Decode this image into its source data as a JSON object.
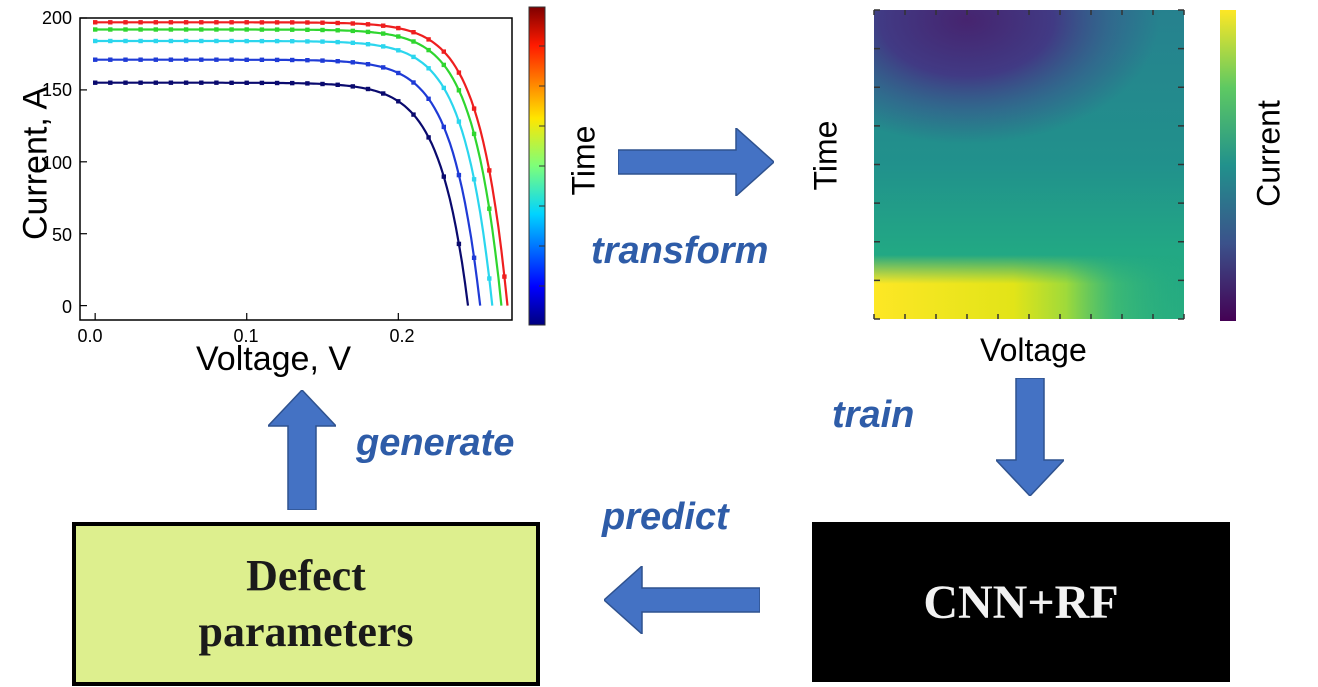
{
  "iv_plot": {
    "ylabel": "Current, A",
    "xlabel": "Voltage, V",
    "colorbar_label": "Time",
    "y_ticks": [
      "0",
      "50",
      "100",
      "150",
      "200"
    ],
    "x_ticks": [
      "0.0",
      "0.1",
      "0.2"
    ]
  },
  "heatmap": {
    "ylabel": "Time",
    "xlabel": "Voltage",
    "colorbar_label": "Current"
  },
  "steps": {
    "transform": "transform",
    "train": "train",
    "predict": "predict",
    "generate": "generate"
  },
  "defect_box": {
    "line1": "Defect",
    "line2": "parameters"
  },
  "model_box": {
    "label": "CNN+RF"
  },
  "colors": {
    "arrow": "#4472C4",
    "step_text": "#2E5CA8",
    "defect_fill": "#DDEF8E",
    "model_fill": "#000000",
    "curves": [
      "#0a0a6e",
      "#1f3bd6",
      "#2bd6ee",
      "#2fd62f",
      "#ee1f1f"
    ]
  },
  "chart_data": {
    "type": "line",
    "xlabel": "Voltage, V",
    "ylabel": "Current, A",
    "xlim": [
      -0.01,
      0.275
    ],
    "ylim": [
      -10,
      200
    ],
    "series": [
      {
        "isc": 155,
        "voc": 0.246,
        "color": "#0a0a6e"
      },
      {
        "isc": 171,
        "voc": 0.254,
        "color": "#1f3bd6"
      },
      {
        "isc": 184,
        "voc": 0.262,
        "color": "#2bd6ee"
      },
      {
        "isc": 192,
        "voc": 0.268,
        "color": "#2fd62f"
      },
      {
        "isc": 197,
        "voc": 0.272,
        "color": "#ee1f1f"
      }
    ]
  }
}
